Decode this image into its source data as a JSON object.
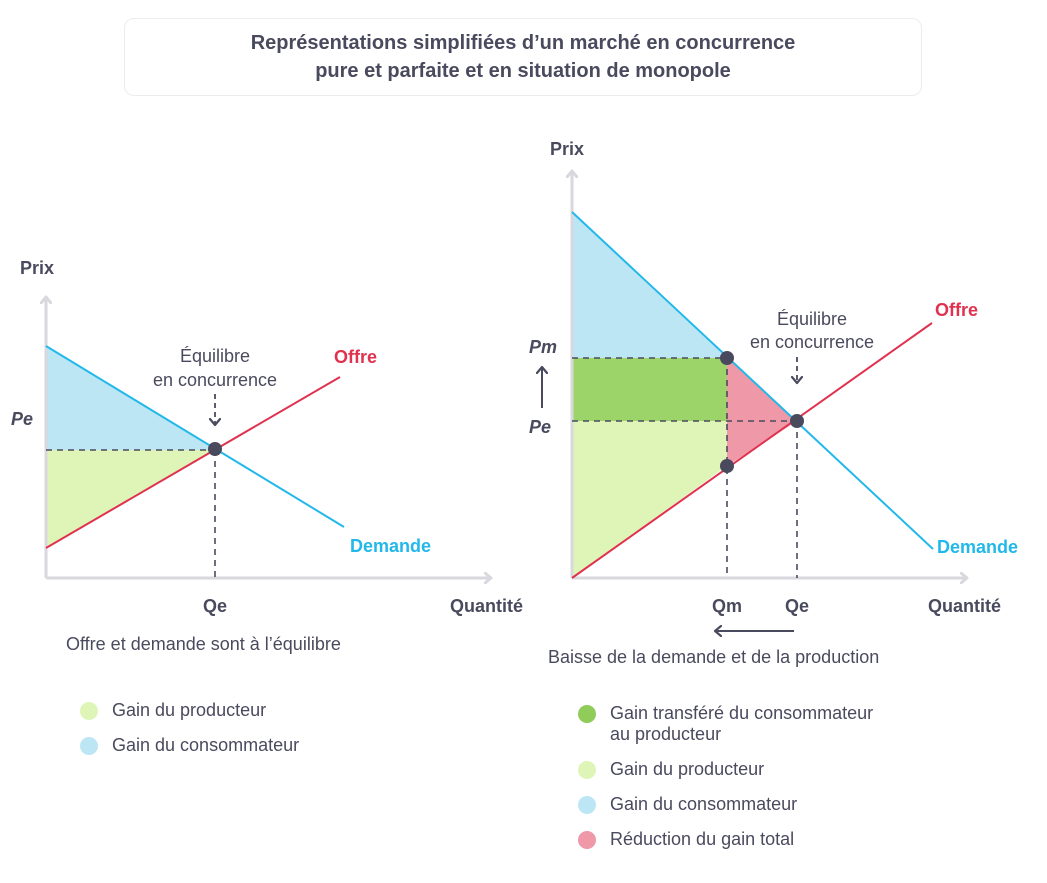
{
  "title": {
    "line1": "Représentations simplifiées d’un marché en concurrence",
    "line2": "pure et parfaite et en situation de monopole"
  },
  "left": {
    "y_axis": "Prix",
    "x_axis": "Quantité",
    "pe": "Pe",
    "qe": "Qe",
    "supply": "Offre",
    "demand": "Demande",
    "equilibrium_line1": "Équilibre",
    "equilibrium_line2": "en concurrence",
    "caption": "Offre et demande sont à l’équilibre",
    "legend": [
      {
        "label": "Gain du producteur",
        "color": "#dff5b8"
      },
      {
        "label": "Gain du consommateur",
        "color": "#bde6f5"
      }
    ]
  },
  "right": {
    "y_axis": "Prix",
    "x_axis": "Quantité",
    "pm": "Pm",
    "pe": "Pe",
    "qm": "Qm",
    "qe": "Qe",
    "supply": "Offre",
    "demand": "Demande",
    "equilibrium_line1": "Équilibre",
    "equilibrium_line2": "en concurrence",
    "caption": "Baisse de la demande et de la production",
    "legend": [
      {
        "label_line1": "Gain transféré du consommateur",
        "label_line2": "au producteur",
        "color": "#8fcc5a"
      },
      {
        "label": "Gain du producteur",
        "color": "#dff5b8"
      },
      {
        "label": "Gain du consommateur",
        "color": "#bde6f5"
      },
      {
        "label": "Réduction du gain total",
        "color": "#ee98a8"
      }
    ]
  },
  "colors": {
    "supply": "#e0314f",
    "demand": "#22b8ea",
    "axis": "#d8d8de",
    "producer": "#dff5b8",
    "consumer": "#bde6f5",
    "transferred": "#9dd46a",
    "deadweight": "#ee98a8",
    "point": "#4a4a5e"
  }
}
